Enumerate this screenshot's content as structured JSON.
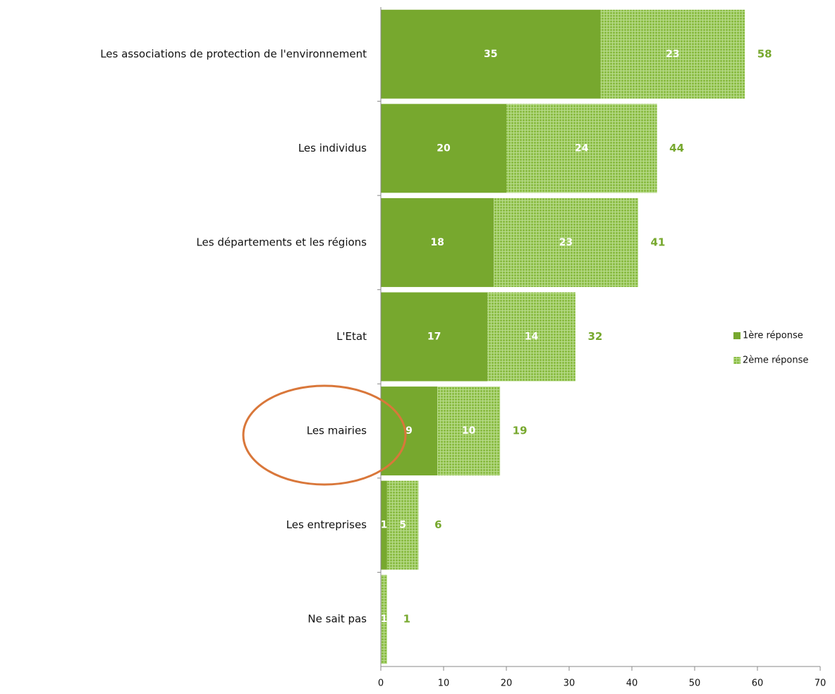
{
  "chart_data": {
    "type": "stacked_hbar",
    "categories": [
      "Les associations de protection de l'environnement",
      "Les individus",
      "Les départements et les régions",
      "L'Etat",
      "Les mairies",
      "Les entreprises",
      "Ne sait pas"
    ],
    "series": [
      {
        "name": "1ère réponse",
        "color": "#77a82e",
        "values": [
          35,
          20,
          18,
          17,
          9,
          1,
          0
        ]
      },
      {
        "name": "2ème réponse",
        "color": "#8cbd46",
        "pattern": "grid",
        "values": [
          23,
          24,
          23,
          14,
          10,
          5,
          1
        ]
      }
    ],
    "totals": [
      58,
      44,
      41,
      32,
      19,
      6,
      1
    ],
    "xlim": [
      0,
      70
    ],
    "xticks": [
      0,
      10,
      20,
      30,
      40,
      50,
      60,
      70
    ],
    "grid": false,
    "legend": "right"
  }
}
